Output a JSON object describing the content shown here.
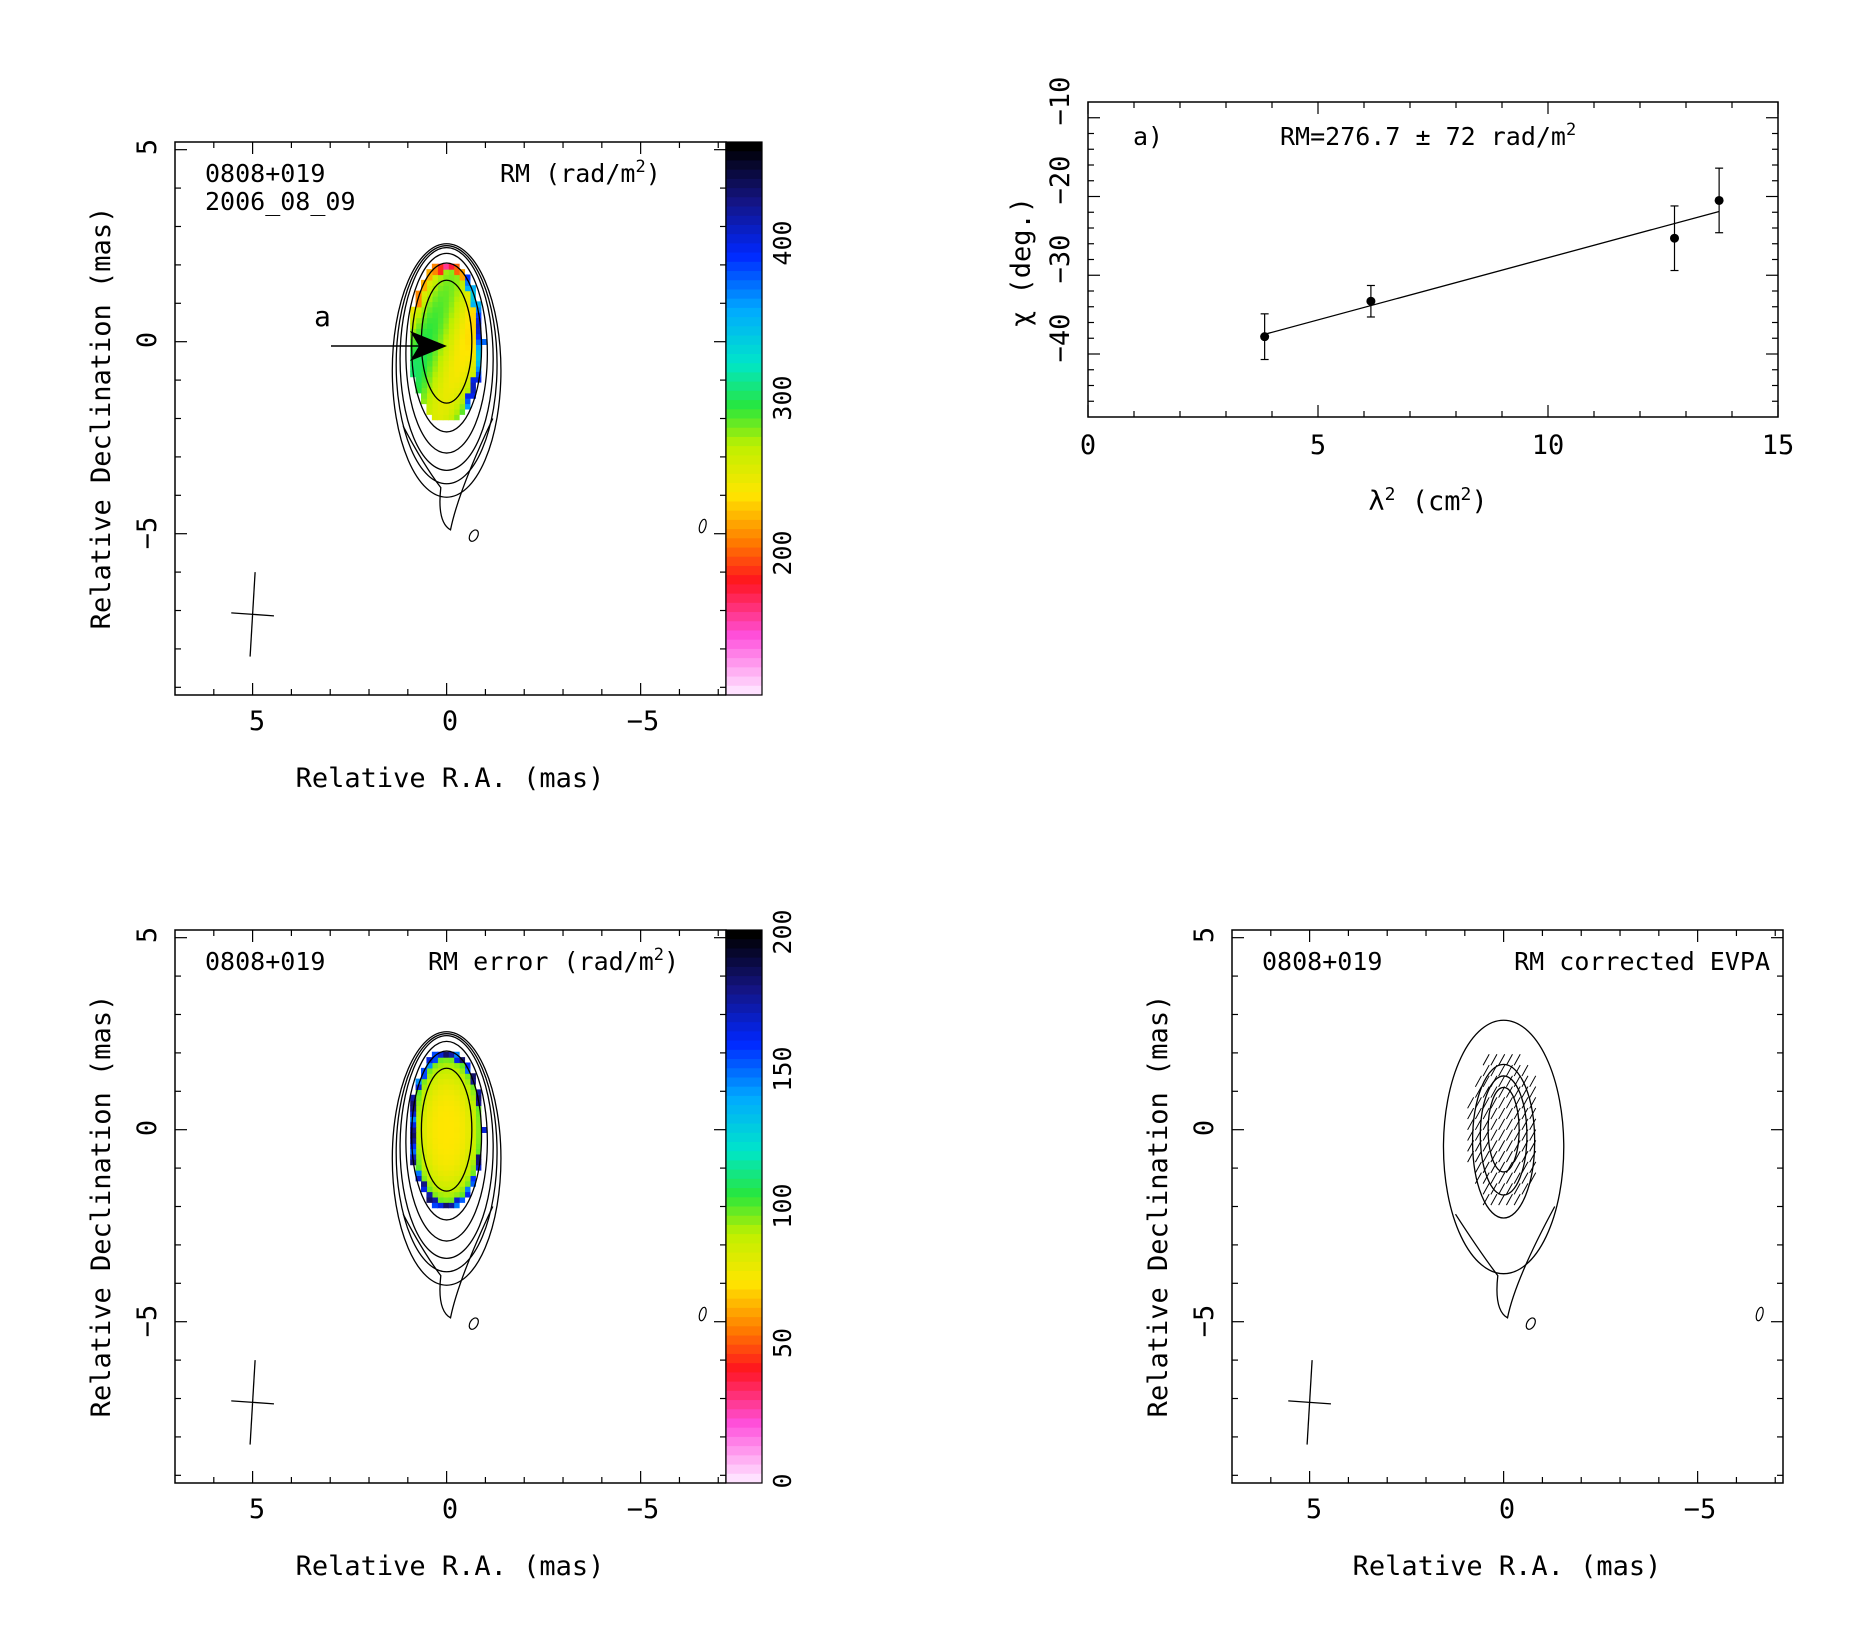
{
  "panels": {
    "rm_map": {
      "source": "0808+019",
      "date": "2006_08_09",
      "title_pre": "RM (rad/m",
      "title_sup": "2",
      "title_post": ")",
      "feature_label": "a",
      "xlabel": "Relative R.A. (mas)",
      "ylabel": "Relative Declination (mas)",
      "xticks": [
        "5",
        "0",
        "−5"
      ],
      "yticks": [
        "5",
        "0",
        "−5"
      ],
      "colorbar_ticks": [
        "200",
        "300",
        "400"
      ]
    },
    "rm_fit": {
      "panel_label": "a)",
      "title_pre": "RM=276.7 ± 72 rad/m",
      "title_sup": "2",
      "xlabel_pre": "λ",
      "xlabel_sup": "2",
      "xlabel_mid": " (cm",
      "xlabel_sup2": "2",
      "xlabel_post": ")",
      "ylabel": "χ (deg.)",
      "xticks": [
        "0",
        "5",
        "10",
        "15"
      ],
      "yticks": [
        "−40",
        "−30",
        "−20",
        "−10"
      ]
    },
    "rm_error_map": {
      "source": "0808+019",
      "title_pre": "RM error (rad/m",
      "title_sup": "2",
      "title_post": ")",
      "xlabel": "Relative R.A. (mas)",
      "ylabel": "Relative Declination (mas)",
      "xticks": [
        "5",
        "0",
        "−5"
      ],
      "yticks": [
        "5",
        "0",
        "−5"
      ],
      "colorbar_ticks": [
        "0",
        "50",
        "100",
        "150",
        "200"
      ]
    },
    "evpa_map": {
      "source": "0808+019",
      "title": "RM corrected EVPA",
      "xlabel": "Relative R.A. (mas)",
      "ylabel": "Relative Declination (mas)",
      "xticks": [
        "5",
        "0",
        "−5"
      ],
      "yticks": [
        "5",
        "0",
        "−5"
      ]
    }
  },
  "chart_data": [
    {
      "type": "heatmap",
      "title": "RM (rad/m2)",
      "xlabel": "Relative R.A. (mas)",
      "ylabel": "Relative Declination (mas)",
      "xlim": [
        7,
        -7.2
      ],
      "ylim": [
        -9.2,
        5.2
      ],
      "colorbar_range": [
        120,
        450
      ],
      "contour_center": [
        0,
        0
      ],
      "contour_semi_axes": [
        [
          0.65,
          1.6
        ],
        [
          0.9,
          2.2
        ],
        [
          1.05,
          2.6
        ],
        [
          1.2,
          2.9
        ],
        [
          1.3,
          3.1
        ],
        [
          1.4,
          3.3
        ]
      ],
      "rm_region_center": [
        0,
        0
      ],
      "rm_region_semi_axes": [
        0.95,
        2.1
      ],
      "beam_center": [
        5,
        -7.1
      ],
      "arrow_from": [
        3.05,
        -0.12
      ],
      "arrow_to": [
        0.05,
        -0.12
      ]
    },
    {
      "type": "scatter",
      "title": "RM=276.7 ± 72 rad/m2",
      "xlabel": "λ2 (cm2)",
      "ylabel": "χ (deg.)",
      "xlim": [
        0,
        15
      ],
      "ylim": [
        -48,
        -8
      ],
      "points": [
        {
          "x": 3.84,
          "y": -37.8,
          "err": 2.9
        },
        {
          "x": 6.15,
          "y": -33.3,
          "err": 2.0
        },
        {
          "x": 12.75,
          "y": -25.3,
          "err": 4.1
        },
        {
          "x": 13.72,
          "y": -20.5,
          "err": 4.1
        }
      ],
      "fit_line": [
        [
          3.84,
          -37.5
        ],
        [
          13.72,
          -21.9
        ]
      ]
    },
    {
      "type": "heatmap",
      "title": "RM error (rad/m2)",
      "xlabel": "Relative R.A. (mas)",
      "ylabel": "Relative Declination (mas)",
      "xlim": [
        7,
        -7.2
      ],
      "ylim": [
        -9.2,
        5.2
      ],
      "colorbar_range": [
        0,
        200
      ],
      "contour_center": [
        0,
        0
      ],
      "contour_semi_axes": [
        [
          0.65,
          1.6
        ],
        [
          0.9,
          2.2
        ],
        [
          1.05,
          2.6
        ],
        [
          1.2,
          2.9
        ],
        [
          1.3,
          3.1
        ],
        [
          1.4,
          3.3
        ]
      ],
      "rm_region_center": [
        0,
        0
      ],
      "rm_region_semi_axes": [
        0.95,
        2.1
      ],
      "beam_center": [
        5,
        -7.1
      ]
    },
    {
      "type": "heatmap",
      "title": "RM corrected EVPA",
      "xlabel": "Relative R.A. (mas)",
      "ylabel": "Relative Declination (mas)",
      "xlim": [
        7,
        -7.2
      ],
      "ylim": [
        -9.2,
        5.2
      ],
      "contour_center": [
        0,
        0
      ],
      "contour_semi_axes": [
        [
          0.4,
          1.1
        ],
        [
          0.6,
          1.55
        ],
        [
          0.8,
          2.0
        ],
        [
          1.55,
          3.3
        ]
      ],
      "vector_region_semi_axes": [
        0.95,
        2.1
      ],
      "beam_center": [
        5,
        -7.1
      ]
    }
  ]
}
